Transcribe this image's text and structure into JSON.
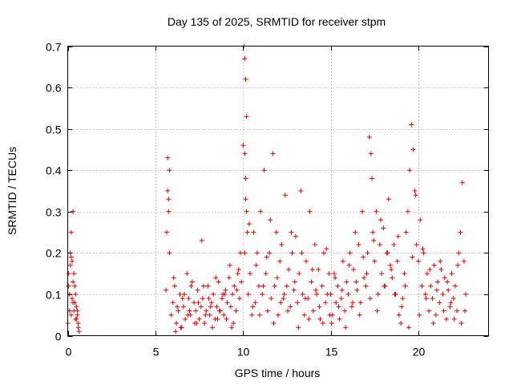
{
  "chart_data": {
    "type": "scatter",
    "title": "Day 135 of 2025, SRMTID for receiver stpm",
    "xlabel": "GPS time / hours",
    "ylabel": "SRMTID / TECUs",
    "xlim": [
      0,
      24
    ],
    "ylim": [
      0,
      0.7
    ],
    "xticks": [
      0,
      5,
      10,
      15,
      20
    ],
    "xtick_labels": [
      "0",
      "5",
      "10",
      "15",
      "20"
    ],
    "yticks": [
      0,
      0.1,
      0.2,
      0.3,
      0.4,
      0.5,
      0.6,
      0.7
    ],
    "ytick_labels": [
      "0",
      "0.1",
      "0.2",
      "0.3",
      "0.4",
      "0.5",
      "0.6",
      "0.7"
    ],
    "grid": true,
    "marker": "+",
    "color": "#e00000",
    "series": [
      {
        "name": "SRMTID",
        "x": [
          0.0,
          0.05,
          0.1,
          0.15,
          0.2,
          0.25,
          0.3,
          0.35,
          0.4,
          0.45,
          0.5,
          0.55,
          0.6,
          0.65,
          0.05,
          0.15,
          0.25,
          0.35,
          0.45,
          0.55,
          0.1,
          0.2,
          0.3,
          0.4,
          0.5,
          0.6,
          0.2,
          0.3,
          5.6,
          5.65,
          5.7,
          5.75,
          5.8,
          5.7,
          5.75,
          5.8,
          5.9,
          6.0,
          6.1,
          6.2,
          6.3,
          6.4,
          6.5,
          6.6,
          6.7,
          6.8,
          6.9,
          7.0,
          7.1,
          7.2,
          7.3,
          7.4,
          7.5,
          7.6,
          7.7,
          7.8,
          7.9,
          8.0,
          8.1,
          8.2,
          8.3,
          8.4,
          8.5,
          8.6,
          8.7,
          8.8,
          8.9,
          9.0,
          9.1,
          9.2,
          9.3,
          9.4,
          9.5,
          9.6,
          9.7,
          9.8,
          9.9,
          6.05,
          6.25,
          6.45,
          6.65,
          6.85,
          7.05,
          7.25,
          7.45,
          7.65,
          7.85,
          8.05,
          8.25,
          8.45,
          8.65,
          8.85,
          9.05,
          9.25,
          9.45,
          9.65,
          9.85,
          6.15,
          6.55,
          6.95,
          7.35,
          7.75,
          8.15,
          8.55,
          8.95,
          9.35,
          9.75,
          10.0,
          10.05,
          10.1,
          10.15,
          10.2,
          10.1,
          10.15,
          10.2,
          10.25,
          10.1,
          10.15,
          10.3,
          10.4,
          10.5,
          10.6,
          10.7,
          10.8,
          10.9,
          11.0,
          11.1,
          11.2,
          11.3,
          11.4,
          11.5,
          11.6,
          11.7,
          11.8,
          11.9,
          12.0,
          12.1,
          12.2,
          12.3,
          12.4,
          12.5,
          12.6,
          12.7,
          12.8,
          12.9,
          13.0,
          13.1,
          13.2,
          13.3,
          13.4,
          13.5,
          13.6,
          13.7,
          13.8,
          13.9,
          14.0,
          14.1,
          14.2,
          14.3,
          14.4,
          14.5,
          14.6,
          14.7,
          14.8,
          14.9,
          10.35,
          10.55,
          10.75,
          10.95,
          11.15,
          11.35,
          11.55,
          11.75,
          11.95,
          12.15,
          12.35,
          12.55,
          12.75,
          12.95,
          13.15,
          13.35,
          13.55,
          13.75,
          13.95,
          14.15,
          14.35,
          14.55,
          14.75,
          14.95,
          15.0,
          15.1,
          15.2,
          15.3,
          15.4,
          15.5,
          15.6,
          15.7,
          15.8,
          15.9,
          16.0,
          16.1,
          16.2,
          16.3,
          16.4,
          16.5,
          16.6,
          16.7,
          16.8,
          16.9,
          17.0,
          17.1,
          17.2,
          17.3,
          17.35,
          17.4,
          17.5,
          17.6,
          17.7,
          17.8,
          17.9,
          18.0,
          18.1,
          18.2,
          18.3,
          18.4,
          18.5,
          18.6,
          18.7,
          18.8,
          18.9,
          15.05,
          15.25,
          15.45,
          15.65,
          15.85,
          16.05,
          16.25,
          16.45,
          16.65,
          16.85,
          17.05,
          17.25,
          17.45,
          17.65,
          17.85,
          18.05,
          18.25,
          18.45,
          18.65,
          18.85,
          19.0,
          19.1,
          19.2,
          19.3,
          19.4,
          19.5,
          19.6,
          19.7,
          19.8,
          19.9,
          20.0,
          20.1,
          20.2,
          20.3,
          20.4,
          20.5,
          20.6,
          20.7,
          20.8,
          20.9,
          21.0,
          21.1,
          21.2,
          21.3,
          21.4,
          21.5,
          21.6,
          21.7,
          21.8,
          21.9,
          22.0,
          22.1,
          22.2,
          22.3,
          22.4,
          22.5,
          22.6,
          22.7,
          19.05,
          19.25,
          19.45,
          19.65,
          19.85,
          20.05,
          20.25,
          20.45,
          20.65,
          20.85,
          21.05,
          21.25,
          21.45,
          21.65,
          21.85,
          22.05,
          22.25,
          22.45,
          22.65
        ],
        "y": [
          0.03,
          0.15,
          0.1,
          0.2,
          0.05,
          0.18,
          0.08,
          0.06,
          0.12,
          0.04,
          0.07,
          0.05,
          0.02,
          0.01,
          0.12,
          0.17,
          0.09,
          0.15,
          0.1,
          0.06,
          0.06,
          0.25,
          0.3,
          0.08,
          0.04,
          0.03,
          0.19,
          0.13,
          0.11,
          0.25,
          0.43,
          0.33,
          0.4,
          0.35,
          0.3,
          0.2,
          0.05,
          0.08,
          0.12,
          0.03,
          0.06,
          0.1,
          0.02,
          0.07,
          0.04,
          0.15,
          0.09,
          0.05,
          0.13,
          0.08,
          0.06,
          0.11,
          0.04,
          0.07,
          0.09,
          0.03,
          0.06,
          0.12,
          0.05,
          0.08,
          0.1,
          0.04,
          0.07,
          0.13,
          0.06,
          0.09,
          0.05,
          0.11,
          0.08,
          0.14,
          0.07,
          0.1,
          0.12,
          0.06,
          0.15,
          0.09,
          0.13,
          0.14,
          0.07,
          0.02,
          0.1,
          0.05,
          0.12,
          0.03,
          0.08,
          0.23,
          0.05,
          0.09,
          0.02,
          0.14,
          0.06,
          0.1,
          0.04,
          0.17,
          0.03,
          0.11,
          0.2,
          0.01,
          0.09,
          0.06,
          0.03,
          0.12,
          0.07,
          0.04,
          0.1,
          0.02,
          0.16,
          0.46,
          0.7,
          0.67,
          0.62,
          0.53,
          0.44,
          0.38,
          0.3,
          0.25,
          0.2,
          0.33,
          0.1,
          0.15,
          0.05,
          0.25,
          0.08,
          0.2,
          0.12,
          0.3,
          0.1,
          0.4,
          0.15,
          0.06,
          0.2,
          0.09,
          0.44,
          0.12,
          0.25,
          0.05,
          0.18,
          0.22,
          0.09,
          0.34,
          0.12,
          0.16,
          0.07,
          0.2,
          0.11,
          0.24,
          0.08,
          0.15,
          0.35,
          0.1,
          0.05,
          0.18,
          0.09,
          0.3,
          0.13,
          0.06,
          0.22,
          0.1,
          0.16,
          0.04,
          0.12,
          0.2,
          0.08,
          0.1,
          0.15,
          0.27,
          0.07,
          0.17,
          0.05,
          0.12,
          0.19,
          0.28,
          0.03,
          0.14,
          0.08,
          0.1,
          0.06,
          0.25,
          0.13,
          0.02,
          0.2,
          0.09,
          0.04,
          0.16,
          0.11,
          0.07,
          0.03,
          0.21,
          0.05,
          0.1,
          0.05,
          0.15,
          0.08,
          0.12,
          0.04,
          0.09,
          0.18,
          0.06,
          0.13,
          0.1,
          0.2,
          0.07,
          0.16,
          0.25,
          0.11,
          0.22,
          0.08,
          0.3,
          0.14,
          0.12,
          0.2,
          0.48,
          0.44,
          0.38,
          0.25,
          0.18,
          0.3,
          0.1,
          0.22,
          0.15,
          0.26,
          0.12,
          0.2,
          0.33,
          0.17,
          0.14,
          0.22,
          0.1,
          0.18,
          0.05,
          0.03,
          0.14,
          0.07,
          0.11,
          0.02,
          0.17,
          0.08,
          0.13,
          0.05,
          0.19,
          0.15,
          0.09,
          0.23,
          0.06,
          0.28,
          0.12,
          0.2,
          0.16,
          0.1,
          0.24,
          0.03,
          0.09,
          0.15,
          0.25,
          0.3,
          0.4,
          0.51,
          0.45,
          0.35,
          0.22,
          0.18,
          0.28,
          0.12,
          0.2,
          0.1,
          0.15,
          0.06,
          0.12,
          0.09,
          0.17,
          0.05,
          0.13,
          0.08,
          0.16,
          0.1,
          0.14,
          0.04,
          0.11,
          0.07,
          0.15,
          0.09,
          0.12,
          0.06,
          0.2,
          0.25,
          0.37,
          0.18,
          0.1,
          0.07,
          0.12,
          0.02,
          0.19,
          0.34,
          0.05,
          0.21,
          0.09,
          0.16,
          0.03,
          0.11,
          0.18,
          0.06,
          0.13,
          0.08,
          0.04,
          0.17,
          0.03,
          0.06
        ]
      }
    ]
  }
}
